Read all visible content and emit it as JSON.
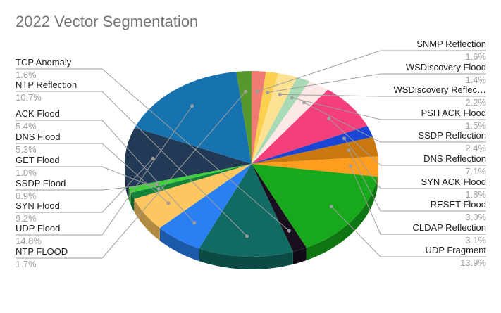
{
  "chart_data": {
    "type": "pie",
    "title": "2022 Vector Segmentation",
    "three_d": true,
    "legend": "labels with leader lines",
    "slices": [
      {
        "name": "SNMP Reflection",
        "value": 1.6,
        "label": "1.6%",
        "color": "#f07b72"
      },
      {
        "name": "WSDiscovery Flood",
        "value": 1.4,
        "label": "1.4%",
        "color": "#fcd04f"
      },
      {
        "name": "WSDiscovery Reflec…",
        "value": 2.2,
        "label": "2.2%",
        "color": "#fde293"
      },
      {
        "name": "PSH ACK Flood",
        "value": 1.5,
        "label": "1.5%",
        "color": "#a8dab5"
      },
      {
        "name": "SSDP Reflection",
        "value": 2.4,
        "label": "2.4%",
        "color": "#fce8e6"
      },
      {
        "name": "DNS Reflection",
        "value": 7.1,
        "label": "7.1%",
        "color": "#f43f7a"
      },
      {
        "name": "SYN ACK Flood",
        "value": 1.8,
        "label": "1.8%",
        "color": "#1a46d6"
      },
      {
        "name": "RESET Flood",
        "value": 3.0,
        "label": "3.0%",
        "color": "#c9770f"
      },
      {
        "name": "CLDAP Reflection",
        "value": 3.1,
        "label": "3.1%",
        "color": "#ff9d1e"
      },
      {
        "name": "UDP Fragment",
        "value": 13.9,
        "label": "13.9%",
        "color": "#17a81b"
      },
      {
        "name": "TCP Anomaly",
        "value": 1.6,
        "label": "1.6%",
        "color": "#1a0f1e"
      },
      {
        "name": "NTP Reflection",
        "value": 10.7,
        "label": "10.7%",
        "color": "#116b63"
      },
      {
        "name": "ACK Flood",
        "value": 5.4,
        "label": "5.4%",
        "color": "#2a7ff2"
      },
      {
        "name": "DNS Flood",
        "value": 5.3,
        "label": "5.3%",
        "color": "#fdc660"
      },
      {
        "name": "GET Flood",
        "value": 1.0,
        "label": "1.0%",
        "color": "#13823b"
      },
      {
        "name": "SSDP Flood",
        "value": 0.9,
        "label": "0.9%",
        "color": "#3fd13a"
      },
      {
        "name": "SYN Flood",
        "value": 9.2,
        "label": "9.2%",
        "color": "#223a55"
      },
      {
        "name": "UDP Flood",
        "value": 14.8,
        "label": "14.8%",
        "color": "#1673b0"
      },
      {
        "name": "NTP FLOOD",
        "value": 1.7,
        "label": "1.7%",
        "color": "#56982c"
      }
    ]
  }
}
